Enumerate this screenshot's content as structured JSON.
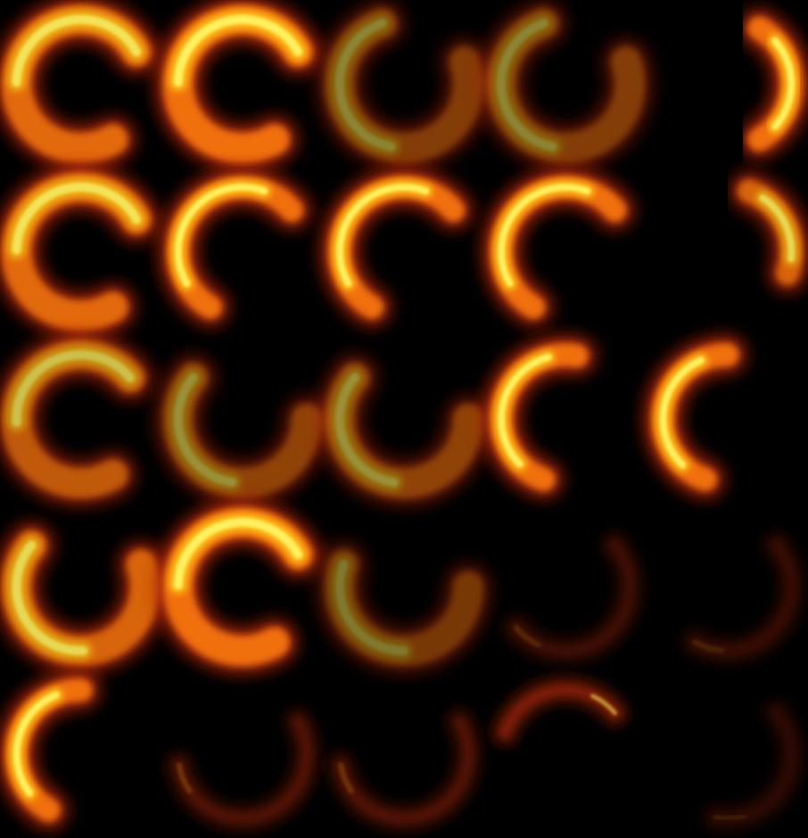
{
  "image": {
    "kind": "flame-slash-sprite-sheet",
    "background": "#000000",
    "grid": {
      "rows": 5,
      "columns": 5
    }
  },
  "palette": {
    "core": "#fff060",
    "hot": "#ffc018",
    "mid": "#f07010",
    "outer": "#b02808",
    "smoke": "#5a1206"
  },
  "frames": [
    {
      "id": "r1c1",
      "rotation": 60,
      "sweep": 270,
      "head": "top-left",
      "intensity": 0.95,
      "shape": "arc"
    },
    {
      "id": "r1c2",
      "rotation": 60,
      "sweep": 270,
      "head": "top-left",
      "intensity": 1.0,
      "shape": "arc"
    },
    {
      "id": "r1c3",
      "rotation": 340,
      "sweep": 270,
      "head": "top-right",
      "intensity": 0.55,
      "shape": "arc"
    },
    {
      "id": "r1c4",
      "rotation": 340,
      "sweep": 270,
      "head": "top-right",
      "intensity": 0.55,
      "shape": "arc"
    },
    {
      "id": "r1c5",
      "rotation": 300,
      "sweep": 120,
      "head": "top",
      "intensity": 1.0,
      "shape": "crescent"
    },
    {
      "id": "r2c1",
      "rotation": 60,
      "sweep": 270,
      "head": "top-left",
      "intensity": 0.95,
      "shape": "arc"
    },
    {
      "id": "r2c2",
      "rotation": 120,
      "sweep": 200,
      "head": "left",
      "intensity": 1.0,
      "shape": "crescent"
    },
    {
      "id": "r2c3",
      "rotation": 120,
      "sweep": 200,
      "head": "left",
      "intensity": 1.0,
      "shape": "crescent"
    },
    {
      "id": "r2c4",
      "rotation": 120,
      "sweep": 200,
      "head": "left",
      "intensity": 1.0,
      "shape": "crescent"
    },
    {
      "id": "r2c5",
      "rotation": 290,
      "sweep": 90,
      "head": "top",
      "intensity": 0.9,
      "shape": "crescent"
    },
    {
      "id": "r3c1",
      "rotation": 60,
      "sweep": 260,
      "head": "top-left",
      "intensity": 0.8,
      "shape": "arc"
    },
    {
      "id": "r3c2",
      "rotation": 0,
      "sweep": 220,
      "head": "top",
      "intensity": 0.6,
      "shape": "arc"
    },
    {
      "id": "r3c3",
      "rotation": 0,
      "sweep": 220,
      "head": "top",
      "intensity": 0.6,
      "shape": "arc"
    },
    {
      "id": "r3c4",
      "rotation": 110,
      "sweep": 170,
      "head": "left",
      "intensity": 1.0,
      "shape": "crescent"
    },
    {
      "id": "r3c5",
      "rotation": 110,
      "sweep": 160,
      "head": "left",
      "intensity": 1.0,
      "shape": "crescent"
    },
    {
      "id": "r4c1",
      "rotation": 340,
      "sweep": 240,
      "head": "top-right",
      "intensity": 0.9,
      "shape": "arc"
    },
    {
      "id": "r4c2",
      "rotation": 60,
      "sweep": 270,
      "head": "top-left",
      "intensity": 1.0,
      "shape": "arc"
    },
    {
      "id": "r4c3",
      "rotation": 0,
      "sweep": 200,
      "head": "top",
      "intensity": 0.5,
      "shape": "arc"
    },
    {
      "id": "r4c4",
      "rotation": 320,
      "sweep": 180,
      "head": "right",
      "intensity": 0.35,
      "shape": "smoke"
    },
    {
      "id": "r4c5",
      "rotation": 320,
      "sweep": 160,
      "head": "right",
      "intensity": 0.3,
      "shape": "smoke"
    },
    {
      "id": "r5c1",
      "rotation": 120,
      "sweep": 150,
      "head": "left",
      "intensity": 1.0,
      "shape": "crescent"
    },
    {
      "id": "r5c2",
      "rotation": 330,
      "sweep": 200,
      "head": "right",
      "intensity": 0.45,
      "shape": "smoke"
    },
    {
      "id": "r5c3",
      "rotation": 330,
      "sweep": 200,
      "head": "right",
      "intensity": 0.45,
      "shape": "smoke"
    },
    {
      "id": "r5c4",
      "rotation": 200,
      "sweep": 120,
      "head": "bottom",
      "intensity": 0.7,
      "shape": "wisp"
    },
    {
      "id": "r5c5",
      "rotation": 320,
      "sweep": 140,
      "head": "right",
      "intensity": 0.25,
      "shape": "smoke"
    }
  ]
}
